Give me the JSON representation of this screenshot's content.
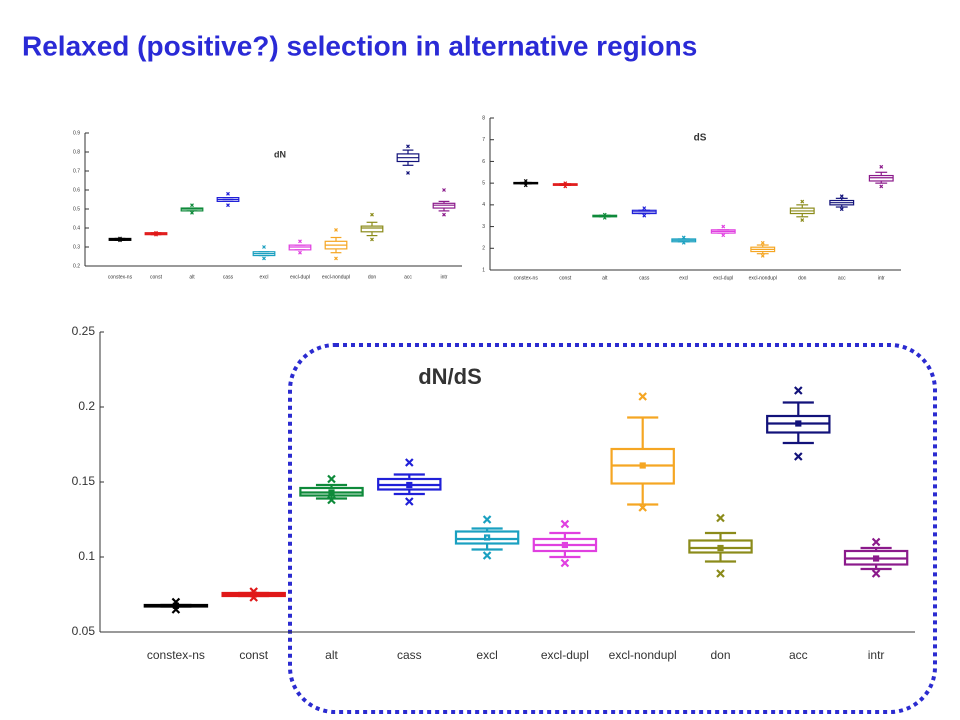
{
  "title": "Relaxed (positive?) selection in alternative regions",
  "chart_data": [
    {
      "type": "box",
      "title": "dN",
      "ylim": [
        0.2,
        0.9
      ],
      "yticks": [
        0.2,
        0.3,
        0.4,
        0.5,
        0.6,
        0.7,
        0.8,
        0.9
      ],
      "categories": [
        "constex-ns",
        "const",
        "alt",
        "cass",
        "excl",
        "excl-dupl",
        "excl-nondupl",
        "don",
        "acc",
        "intr"
      ],
      "boxes": [
        {
          "color": "#000000",
          "whislo": 0.335,
          "q1": 0.335,
          "med": 0.34,
          "q3": 0.345,
          "whishi": 0.345,
          "fliers": [
            0.345,
            0.335
          ]
        },
        {
          "color": "#e01818",
          "whislo": 0.365,
          "q1": 0.365,
          "med": 0.37,
          "q3": 0.375,
          "whishi": 0.375,
          "fliers": [
            0.375,
            0.365
          ]
        },
        {
          "color": "#0e8a3a",
          "whislo": 0.49,
          "q1": 0.49,
          "med": 0.5,
          "q3": 0.505,
          "whishi": 0.505,
          "fliers": [
            0.52,
            0.48
          ]
        },
        {
          "color": "#2020d8",
          "whislo": 0.54,
          "q1": 0.54,
          "med": 0.55,
          "q3": 0.56,
          "whishi": 0.56,
          "fliers": [
            0.58,
            0.52
          ]
        },
        {
          "color": "#1aa0c0",
          "whislo": 0.255,
          "q1": 0.255,
          "med": 0.265,
          "q3": 0.275,
          "whishi": 0.275,
          "fliers": [
            0.3,
            0.24
          ]
        },
        {
          "color": "#e040e0",
          "whislo": 0.285,
          "q1": 0.285,
          "med": 0.3,
          "q3": 0.31,
          "whishi": 0.31,
          "fliers": [
            0.33,
            0.27
          ]
        },
        {
          "color": "#f5a623",
          "whislo": 0.27,
          "q1": 0.29,
          "med": 0.31,
          "q3": 0.33,
          "whishi": 0.35,
          "fliers": [
            0.39,
            0.24
          ]
        },
        {
          "color": "#8b8b1a",
          "whislo": 0.36,
          "q1": 0.38,
          "med": 0.4,
          "q3": 0.41,
          "whishi": 0.43,
          "fliers": [
            0.47,
            0.34
          ]
        },
        {
          "color": "#12127a",
          "whislo": 0.73,
          "q1": 0.75,
          "med": 0.77,
          "q3": 0.79,
          "whishi": 0.81,
          "fliers": [
            0.83,
            0.69
          ]
        },
        {
          "color": "#8b1a8b",
          "whislo": 0.49,
          "q1": 0.505,
          "med": 0.52,
          "q3": 0.53,
          "whishi": 0.54,
          "fliers": [
            0.6,
            0.47
          ]
        }
      ]
    },
    {
      "type": "box",
      "title": "dS",
      "ylim": [
        1,
        8
      ],
      "yticks": [
        1,
        2,
        3,
        4,
        5,
        6,
        7,
        8
      ],
      "categories": [
        "constex-ns",
        "const",
        "alt",
        "cass",
        "excl",
        "excl-dupl",
        "excl-nondupl",
        "don",
        "acc",
        "intr"
      ],
      "boxes": [
        {
          "color": "#000000",
          "whislo": 4.97,
          "q1": 4.97,
          "med": 5.0,
          "q3": 5.03,
          "whishi": 5.03,
          "fliers": [
            5.1,
            4.9
          ]
        },
        {
          "color": "#e01818",
          "whislo": 4.9,
          "q1": 4.9,
          "med": 4.93,
          "q3": 4.97,
          "whishi": 4.97,
          "fliers": [
            5.0,
            4.85
          ]
        },
        {
          "color": "#0e8a3a",
          "whislo": 3.45,
          "q1": 3.45,
          "med": 3.48,
          "q3": 3.52,
          "whishi": 3.52,
          "fliers": [
            3.55,
            3.4
          ]
        },
        {
          "color": "#2020d8",
          "whislo": 3.6,
          "q1": 3.6,
          "med": 3.68,
          "q3": 3.75,
          "whishi": 3.75,
          "fliers": [
            3.85,
            3.5
          ]
        },
        {
          "color": "#1aa0c0",
          "whislo": 2.3,
          "q1": 2.3,
          "med": 2.37,
          "q3": 2.43,
          "whishi": 2.43,
          "fliers": [
            2.5,
            2.25
          ]
        },
        {
          "color": "#e040e0",
          "whislo": 2.7,
          "q1": 2.7,
          "med": 2.78,
          "q3": 2.85,
          "whishi": 2.85,
          "fliers": [
            3.0,
            2.6
          ]
        },
        {
          "color": "#f5a623",
          "whislo": 1.75,
          "q1": 1.85,
          "med": 1.95,
          "q3": 2.05,
          "whishi": 2.15,
          "fliers": [
            2.25,
            1.65
          ]
        },
        {
          "color": "#8b8b1a",
          "whislo": 3.45,
          "q1": 3.6,
          "med": 3.72,
          "q3": 3.85,
          "whishi": 4.0,
          "fliers": [
            4.15,
            3.3
          ]
        },
        {
          "color": "#12127a",
          "whislo": 3.9,
          "q1": 4.0,
          "med": 4.1,
          "q3": 4.2,
          "whishi": 4.3,
          "fliers": [
            4.4,
            3.8
          ]
        },
        {
          "color": "#8b1a8b",
          "whislo": 5.0,
          "q1": 5.1,
          "med": 5.25,
          "q3": 5.35,
          "whishi": 5.5,
          "fliers": [
            5.75,
            4.85
          ]
        }
      ]
    },
    {
      "type": "box",
      "title": "dN/dS",
      "ylim": [
        0.05,
        0.25
      ],
      "yticks": [
        0.05,
        0.1,
        0.15,
        0.2,
        0.25
      ],
      "categories": [
        "constex-ns",
        "const",
        "alt",
        "cass",
        "excl",
        "excl-dupl",
        "excl-nondupl",
        "don",
        "acc",
        "intr"
      ],
      "boxes": [
        {
          "color": "#000000",
          "whislo": 0.067,
          "q1": 0.067,
          "med": 0.0675,
          "q3": 0.068,
          "whishi": 0.068,
          "mean": 0.0675,
          "fliers": [
            0.07,
            0.065
          ]
        },
        {
          "color": "#e01818",
          "whislo": 0.074,
          "q1": 0.074,
          "med": 0.075,
          "q3": 0.076,
          "whishi": 0.076,
          "mean": 0.075,
          "fliers": [
            0.077,
            0.073
          ]
        },
        {
          "color": "#0e8a3a",
          "whislo": 0.139,
          "q1": 0.141,
          "med": 0.143,
          "q3": 0.146,
          "whishi": 0.148,
          "mean": 0.143,
          "fliers": [
            0.152,
            0.138
          ]
        },
        {
          "color": "#2020d8",
          "whislo": 0.142,
          "q1": 0.145,
          "med": 0.148,
          "q3": 0.152,
          "whishi": 0.155,
          "mean": 0.148,
          "fliers": [
            0.163,
            0.137
          ]
        },
        {
          "color": "#1aa0c0",
          "whislo": 0.105,
          "q1": 0.109,
          "med": 0.112,
          "q3": 0.117,
          "whishi": 0.119,
          "mean": 0.113,
          "fliers": [
            0.125,
            0.101
          ]
        },
        {
          "color": "#e040e0",
          "whislo": 0.1,
          "q1": 0.104,
          "med": 0.108,
          "q3": 0.112,
          "whishi": 0.116,
          "mean": 0.108,
          "fliers": [
            0.122,
            0.096
          ]
        },
        {
          "color": "#f5a623",
          "whislo": 0.135,
          "q1": 0.149,
          "med": 0.161,
          "q3": 0.172,
          "whishi": 0.193,
          "mean": 0.161,
          "fliers": [
            0.207,
            0.133
          ]
        },
        {
          "color": "#8b8b1a",
          "whislo": 0.097,
          "q1": 0.103,
          "med": 0.106,
          "q3": 0.111,
          "whishi": 0.116,
          "mean": 0.106,
          "fliers": [
            0.126,
            0.089
          ]
        },
        {
          "color": "#12127a",
          "whislo": 0.176,
          "q1": 0.183,
          "med": 0.189,
          "q3": 0.194,
          "whishi": 0.203,
          "mean": 0.189,
          "fliers": [
            0.211,
            0.167
          ]
        },
        {
          "color": "#8b1a8b",
          "whislo": 0.092,
          "q1": 0.095,
          "med": 0.099,
          "q3": 0.104,
          "whishi": 0.106,
          "mean": 0.099,
          "fliers": [
            0.11,
            0.089
          ]
        }
      ]
    }
  ]
}
